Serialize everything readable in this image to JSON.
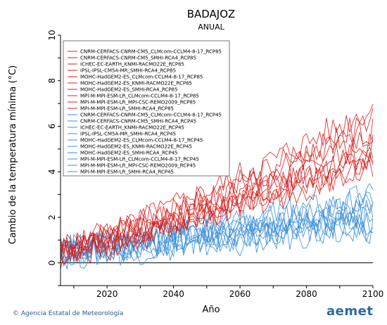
{
  "chart_data": {
    "type": "line",
    "title": "BADAJOZ",
    "subtitle": "ANUAL",
    "xlabel": "Año",
    "ylabel": "Cambio de la temperatura mínima (°C)",
    "xlim": [
      2006,
      2100
    ],
    "ylim": [
      -1,
      10
    ],
    "xticks": [
      2020,
      2040,
      2060,
      2080,
      2100
    ],
    "yticks": [
      0,
      2,
      4,
      6,
      8,
      10
    ],
    "legend_position": "top-left",
    "reference_line": 0,
    "series": [
      {
        "name": "CNRM-CERFACS-CNRM-CM5_CLMcom-CCLM4-8-17_RCP85",
        "color": "#d62020",
        "start": 0.6,
        "end": 5.8,
        "seed": 1
      },
      {
        "name": "CNRM-CERFACS-CNRM-CM5_SMHI-RCA4_RCP85",
        "color": "#d62020",
        "start": 0.4,
        "end": 5.2,
        "seed": 2
      },
      {
        "name": "ICHEC-EC-EARTH_KNMI-RACMO22E_RCP85",
        "color": "#d62020",
        "start": 0.5,
        "end": 4.6,
        "seed": 3
      },
      {
        "name": "IPSL-IPSL-CM5A-MR_SMHI-RCA4_RCP85",
        "color": "#d62020",
        "start": 0.7,
        "end": 6.2,
        "seed": 4
      },
      {
        "name": "MOHC-HadGEM2-ES_CLMcom-CCLM4-8-17_RCP85",
        "color": "#d62020",
        "start": 0.5,
        "end": 6.8,
        "seed": 5
      },
      {
        "name": "MOHC-HadGEM2-ES_KNMI-RACMO22E_RCP85",
        "color": "#d62020",
        "start": 0.6,
        "end": 5.6,
        "seed": 6
      },
      {
        "name": "MOHC-HadGEM2-ES_SMHI-RCA4_RCP85",
        "color": "#d62020",
        "start": 0.4,
        "end": 5.0,
        "seed": 7
      },
      {
        "name": "MPI-M-MPI-ESM-LR_CLMcom-CCLM4-8-17_RCP85",
        "color": "#d62020",
        "start": 0.5,
        "end": 4.2,
        "seed": 8
      },
      {
        "name": "MPI-M-MPI-ESM-LR_MPI-CSC-REMO2009_RCP85",
        "color": "#d62020",
        "start": 0.5,
        "end": 4.8,
        "seed": 9
      },
      {
        "name": "MPI-M-MPI-ESM-LR_SMHI-RCA4_RCP85",
        "color": "#d62020",
        "start": 0.3,
        "end": 4.4,
        "seed": 10
      },
      {
        "name": "CNRM-CERFACS-CNRM-CM5_CLMcom-CCLM4-8-17_RCP45",
        "color": "#3a8fd8",
        "start": 0.6,
        "end": 2.4,
        "seed": 11
      },
      {
        "name": "CNRM-CERFACS-CNRM-CM5_SMHI-RCA4_RCP45",
        "color": "#3a8fd8",
        "start": 0.5,
        "end": 2.1,
        "seed": 12
      },
      {
        "name": "ICHEC-EC-EARTH_KNMI-RACMO22E_RCP45",
        "color": "#3a8fd8",
        "start": 0.5,
        "end": 1.9,
        "seed": 13
      },
      {
        "name": "IPSL-IPSL-CM5A-MR_SMHI-RCA4_RCP45",
        "color": "#3a8fd8",
        "start": 0.6,
        "end": 2.9,
        "seed": 14
      },
      {
        "name": "MOHC-HadGEM2-ES_CLMcom-CCLM4-8-17_RCP45",
        "color": "#3a8fd8",
        "start": 0.5,
        "end": 2.7,
        "seed": 15
      },
      {
        "name": "MOHC-HadGEM2-ES_KNMI-RACMO22E_RCP45",
        "color": "#3a8fd8",
        "start": 0.6,
        "end": 2.5,
        "seed": 16
      },
      {
        "name": "MOHC-HadGEM2-ES_SMHI-RCA4_RCP45",
        "color": "#3a8fd8",
        "start": 0.4,
        "end": 2.2,
        "seed": 17
      },
      {
        "name": "MPI-M-MPI-ESM-LR_CLMcom-CCLM4-8-17_RCP45",
        "color": "#3a8fd8",
        "start": 0.5,
        "end": 1.6,
        "seed": 18
      },
      {
        "name": "MPI-M-MPI-ESM-LR_MPI-CSC-REMO2009_RCP45",
        "color": "#3a8fd8",
        "start": 0.5,
        "end": 1.8,
        "seed": 19
      },
      {
        "name": "MPI-M-MPI-ESM-LR_SMHI-RCA4_RCP45",
        "color": "#3a8fd8",
        "start": 0.3,
        "end": 1.5,
        "seed": 20
      }
    ]
  },
  "footer": {
    "credit": "© Agencia Estatal de Meteorología",
    "logo": "aemet"
  }
}
